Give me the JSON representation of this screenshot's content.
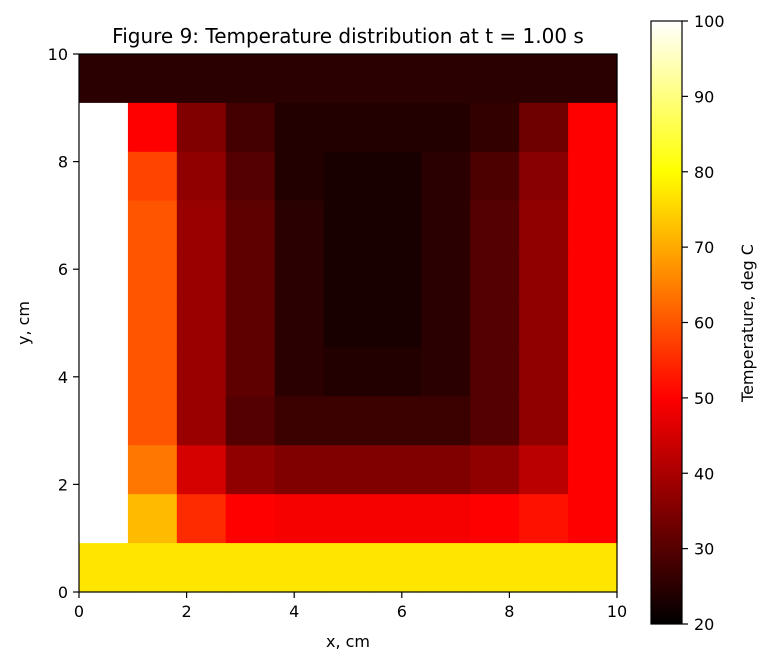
{
  "chart_data": {
    "type": "heatmap",
    "title": "Figure 9: Temperature distribution at t = 1.00 s",
    "xlabel": "x, cm",
    "ylabel": "y, cm",
    "xlim": [
      0,
      10
    ],
    "ylim": [
      0,
      10
    ],
    "xticks": [
      "0",
      "2",
      "4",
      "6",
      "8",
      "10"
    ],
    "yticks": [
      "0",
      "2",
      "4",
      "6",
      "8",
      "10"
    ],
    "colormap": "hot",
    "grid": false,
    "colorbar": {
      "label": "Temperature, deg C",
      "vmin": 20,
      "vmax": 100,
      "ticks": [
        "20",
        "30",
        "40",
        "50",
        "60",
        "70",
        "80",
        "90",
        "100"
      ]
    },
    "grid_size": [
      11,
      11
    ],
    "rows_top_to_bottom": [
      [
        25,
        25,
        25,
        25,
        25,
        25,
        25,
        25,
        25,
        25,
        25
      ],
      [
        100,
        50,
        35,
        28,
        24,
        24,
        24,
        24,
        26,
        33,
        50
      ],
      [
        100,
        58,
        37,
        30,
        24,
        23,
        23,
        25,
        29,
        36,
        50
      ],
      [
        100,
        60,
        38,
        31,
        25,
        23,
        23,
        25,
        30,
        37,
        50
      ],
      [
        100,
        60,
        38,
        31,
        25,
        23,
        23,
        25,
        30,
        37,
        50
      ],
      [
        100,
        60,
        38,
        31,
        25,
        23,
        23,
        25,
        30,
        37,
        50
      ],
      [
        100,
        60,
        38,
        31,
        25,
        24,
        24,
        25,
        30,
        37,
        50
      ],
      [
        100,
        60,
        38,
        30,
        27,
        27,
        27,
        27,
        30,
        37,
        50
      ],
      [
        100,
        64,
        45,
        37,
        35,
        35,
        35,
        35,
        37,
        42,
        50
      ],
      [
        100,
        72,
        55,
        50,
        49,
        49,
        49,
        49,
        50,
        52,
        50
      ],
      [
        77,
        77,
        77,
        77,
        77,
        77,
        77,
        77,
        77,
        77,
        77
      ]
    ]
  }
}
